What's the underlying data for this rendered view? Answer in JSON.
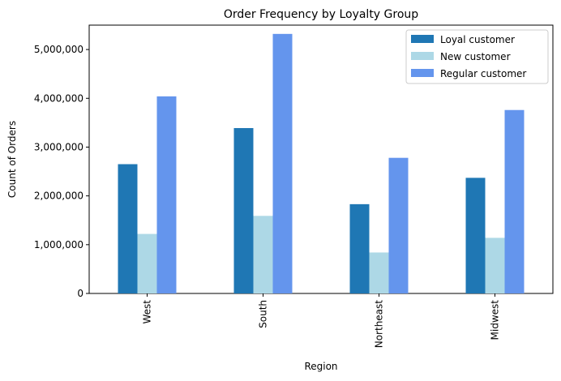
{
  "chart_data": {
    "type": "bar",
    "title": "Order Frequency by Loyalty Group",
    "xlabel": "Region",
    "ylabel": "Count of Orders",
    "categories": [
      "West",
      "South",
      "Northeast",
      "Midwest"
    ],
    "series": [
      {
        "name": "Loyal customer",
        "color": "#1f77b4",
        "values": [
          2650000,
          3390000,
          1830000,
          2370000
        ]
      },
      {
        "name": "New customer",
        "color": "#add8e6",
        "values": [
          1220000,
          1590000,
          840000,
          1140000
        ]
      },
      {
        "name": "Regular customer",
        "color": "#6495ed",
        "values": [
          4040000,
          5320000,
          2780000,
          3760000
        ]
      }
    ],
    "ylim": [
      0,
      5500000
    ],
    "yticks": [
      0,
      1000000,
      2000000,
      3000000,
      4000000,
      5000000
    ],
    "ytick_labels": [
      "0",
      "1,000,000",
      "2,000,000",
      "3,000,000",
      "4,000,000",
      "5,000,000"
    ],
    "legend_position": "top-right",
    "grid": false
  }
}
